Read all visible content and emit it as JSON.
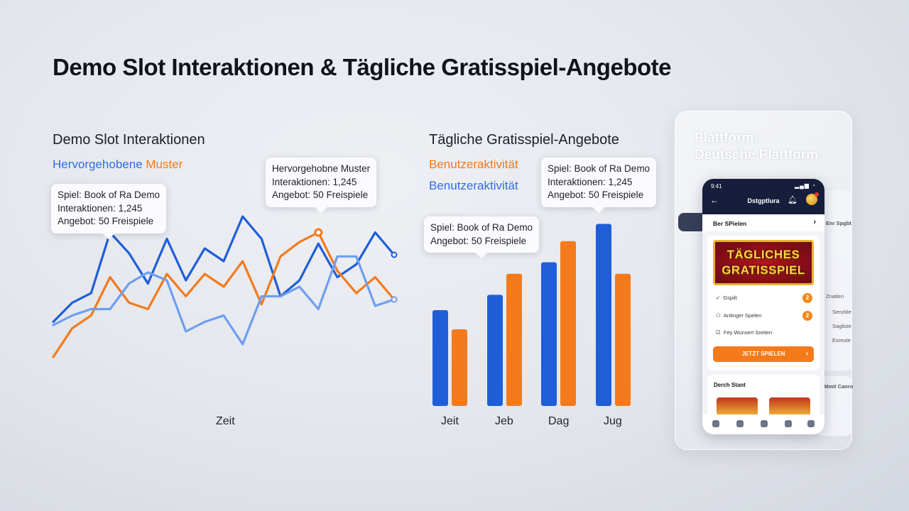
{
  "page": {
    "title": "Demo Slot Interaktionen & Tägliche Gratisspiel-Angebote"
  },
  "chart_data": [
    {
      "type": "line",
      "title": "Demo Slot Interaktionen",
      "legend_prefix": "Hervorgehobene",
      "legend_suffix": "Muster",
      "xlabel": "Zeit",
      "ylabel": "",
      "x": [
        1,
        2,
        3,
        4,
        5,
        6,
        7,
        8,
        9,
        10,
        11,
        12,
        13,
        14,
        15,
        16,
        17,
        18,
        19
      ],
      "series": [
        {
          "color": "#1f5ed8",
          "values": [
            34,
            46,
            52,
            90,
            77,
            58,
            86,
            60,
            80,
            72,
            100,
            86,
            50,
            60,
            83,
            62,
            70,
            90,
            76
          ]
        },
        {
          "color": "#f47a1c",
          "values": [
            12,
            30,
            38,
            62,
            46,
            42,
            64,
            50,
            64,
            56,
            72,
            45,
            75,
            84,
            90,
            66,
            52,
            62,
            48
          ]
        },
        {
          "color": "#6f9ef0",
          "values": [
            32,
            38,
            42,
            42,
            58,
            65,
            60,
            28,
            34,
            38,
            20,
            50,
            50,
            56,
            42,
            75,
            75,
            44,
            48
          ]
        }
      ],
      "annotations": [
        {
          "line1": "Spiel: Book of Ra Demo",
          "line2": "Interaktionen: 1,245",
          "line3": "Angebot: 50 Freispiele"
        },
        {
          "line1": "Hervorgehobne Muster",
          "line2": "Interaktionen: 1,245",
          "line3": "Angebot: 50 Freispiele"
        }
      ]
    },
    {
      "type": "bar",
      "title": "Tägliche Gratisspiel-Angebote",
      "categories": [
        "Jeit",
        "Jeb",
        "Dag",
        "Jug"
      ],
      "series": [
        {
          "name": "Benutzeraktivität",
          "color": "#1f5ed8",
          "values": [
            50,
            58,
            75,
            95
          ]
        },
        {
          "name": "Benutzeraktivität",
          "color": "#f47a1c",
          "values": [
            40,
            69,
            86,
            69
          ]
        }
      ],
      "legend": [
        "Benutzeraktivität",
        "Benutzeraktivität"
      ],
      "ylim": [
        0,
        100
      ],
      "annotations": [
        {
          "line1": "Spiel: Book of Ra Demo",
          "line2": "Angebot: 50 Freispiele"
        },
        {
          "line1": "Spiel: Book of Ra Demo",
          "line2": "Interaktionen: 1,245",
          "line3": "Angebot: 50 Freispiele"
        }
      ]
    }
  ],
  "platform": {
    "title_line1": "Plattform:",
    "title_line2": "Deutsche Plattform",
    "phone": {
      "time": "9:41",
      "status": "▂▄▆ ◔",
      "app_name": "Dstgptlura",
      "row_label": "Ber SPielen",
      "banner_line1": "TÄGLICHES",
      "banner_line2": "GRATISSPIEL",
      "items": [
        "Gspilt",
        "Antinger Spelen",
        "Fey Wunsert Sreiten"
      ],
      "badges": [
        "2",
        "2"
      ],
      "cta": "JETZT SPIELEN",
      "section2": "Derch Stant",
      "side_header": "Enr Spgbt",
      "side_items": [
        "Znatlen",
        "Senzkle",
        "Sagliste",
        "Esreute"
      ],
      "side_header2": "Mmit Canro"
    }
  }
}
